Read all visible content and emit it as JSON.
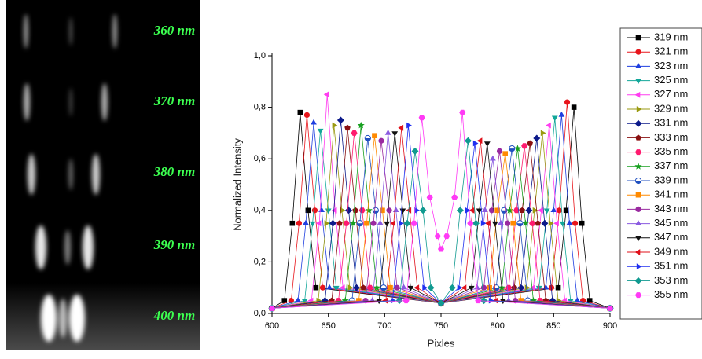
{
  "image_labels": [
    "360 nm",
    "370 nm",
    "380 nm",
    "390 nm",
    "400 nm"
  ],
  "chart_data": {
    "type": "line",
    "x_label": "Pixles",
    "y_label": "Normalized Intensity",
    "xlim": [
      600,
      900
    ],
    "xticks": [
      600,
      650,
      700,
      750,
      800,
      850,
      900
    ],
    "ylim": [
      0,
      1
    ],
    "yticks": [
      {
        "value": 0,
        "label": "0,0"
      },
      {
        "value": 0.2,
        "label": "0,2"
      },
      {
        "value": 0.4,
        "label": "0,4"
      },
      {
        "value": 0.6,
        "label": "0,6"
      },
      {
        "value": 0.8,
        "label": "0,8"
      },
      {
        "value": 1,
        "label": "1,0"
      }
    ],
    "legend": "right",
    "series": [
      {
        "name": "319 nm",
        "color": "#000000",
        "marker": "square",
        "x": [
          600,
          611,
          618,
          625,
          632,
          639,
          750,
          854,
          861,
          868,
          875,
          882,
          900
        ],
        "values": [
          0.02,
          0.05,
          0.35,
          0.78,
          0.4,
          0.1,
          0.04,
          0.1,
          0.4,
          0.8,
          0.35,
          0.05,
          0.02
        ]
      },
      {
        "name": "321 nm",
        "color": "#e8151b",
        "marker": "circle",
        "x": [
          600,
          617,
          624,
          631,
          638,
          645,
          750,
          848,
          855,
          862,
          869,
          876,
          900
        ],
        "values": [
          0.02,
          0.05,
          0.35,
          0.77,
          0.4,
          0.1,
          0.04,
          0.1,
          0.4,
          0.82,
          0.35,
          0.05,
          0.02
        ]
      },
      {
        "name": "323 nm",
        "color": "#1f3fe0",
        "marker": "triangle-up",
        "x": [
          600,
          623,
          630,
          637,
          644,
          651,
          750,
          843,
          850,
          857,
          864,
          871,
          900
        ],
        "values": [
          0.02,
          0.05,
          0.35,
          0.74,
          0.4,
          0.1,
          0.04,
          0.1,
          0.4,
          0.77,
          0.35,
          0.05,
          0.02
        ]
      },
      {
        "name": "325 nm",
        "color": "#12a79a",
        "marker": "triangle-down",
        "x": [
          600,
          629,
          636,
          643,
          650,
          657,
          750,
          837,
          844,
          851,
          858,
          865,
          900
        ],
        "values": [
          0.02,
          0.05,
          0.35,
          0.71,
          0.4,
          0.1,
          0.04,
          0.1,
          0.4,
          0.76,
          0.35,
          0.05,
          0.02
        ]
      },
      {
        "name": "327 nm",
        "color": "#ff3df0",
        "marker": "triangle-left",
        "x": [
          600,
          635,
          642,
          649,
          656,
          663,
          750,
          832,
          839,
          846,
          853,
          860,
          900
        ],
        "values": [
          0.02,
          0.05,
          0.35,
          0.85,
          0.4,
          0.1,
          0.04,
          0.1,
          0.4,
          0.73,
          0.35,
          0.05,
          0.02
        ]
      },
      {
        "name": "329 nm",
        "color": "#9a9a10",
        "marker": "triangle-right",
        "x": [
          600,
          641,
          648,
          655,
          662,
          669,
          750,
          826,
          833,
          840,
          847,
          854,
          900
        ],
        "values": [
          0.02,
          0.05,
          0.35,
          0.73,
          0.4,
          0.1,
          0.04,
          0.1,
          0.4,
          0.7,
          0.35,
          0.05,
          0.02
        ]
      },
      {
        "name": "331 nm",
        "color": "#0c1a8a",
        "marker": "diamond",
        "x": [
          600,
          647,
          654,
          661,
          668,
          675,
          750,
          821,
          828,
          835,
          842,
          849,
          900
        ],
        "values": [
          0.02,
          0.05,
          0.35,
          0.75,
          0.4,
          0.1,
          0.04,
          0.1,
          0.4,
          0.68,
          0.35,
          0.05,
          0.02
        ]
      },
      {
        "name": "333 nm",
        "color": "#8a1010",
        "marker": "pentagon",
        "x": [
          600,
          653,
          660,
          667,
          674,
          681,
          750,
          815,
          822,
          829,
          836,
          843,
          900
        ],
        "values": [
          0.02,
          0.05,
          0.35,
          0.72,
          0.4,
          0.1,
          0.04,
          0.1,
          0.4,
          0.66,
          0.35,
          0.05,
          0.02
        ]
      },
      {
        "name": "335 nm",
        "color": "#ff1a6e",
        "marker": "hexagon",
        "x": [
          600,
          659,
          666,
          673,
          680,
          687,
          750,
          810,
          817,
          824,
          831,
          838,
          900
        ],
        "values": [
          0.02,
          0.05,
          0.35,
          0.7,
          0.4,
          0.1,
          0.04,
          0.1,
          0.4,
          0.65,
          0.35,
          0.05,
          0.02
        ]
      },
      {
        "name": "337 nm",
        "color": "#18a020",
        "marker": "star",
        "x": [
          600,
          665,
          672,
          679,
          686,
          693,
          750,
          804,
          811,
          818,
          825,
          832,
          900
        ],
        "values": [
          0.02,
          0.05,
          0.35,
          0.73,
          0.4,
          0.1,
          0.04,
          0.1,
          0.4,
          0.64,
          0.35,
          0.05,
          0.02
        ]
      },
      {
        "name": "339 nm",
        "color": "#2050c0",
        "marker": "half-circle",
        "x": [
          600,
          671,
          678,
          685,
          692,
          699,
          750,
          799,
          806,
          813,
          820,
          827,
          900
        ],
        "values": [
          0.02,
          0.05,
          0.35,
          0.68,
          0.4,
          0.1,
          0.04,
          0.1,
          0.4,
          0.64,
          0.35,
          0.05,
          0.02
        ]
      },
      {
        "name": "341 nm",
        "color": "#ff8a00",
        "marker": "square",
        "x": [
          600,
          677,
          684,
          691,
          698,
          705,
          750,
          793,
          800,
          807,
          814,
          821,
          900
        ],
        "values": [
          0.02,
          0.05,
          0.35,
          0.69,
          0.4,
          0.1,
          0.04,
          0.1,
          0.4,
          0.62,
          0.35,
          0.05,
          0.02
        ]
      },
      {
        "name": "343 nm",
        "color": "#9a2aa0",
        "marker": "circle",
        "x": [
          600,
          683,
          690,
          697,
          704,
          711,
          750,
          788,
          795,
          802,
          809,
          816,
          900
        ],
        "values": [
          0.02,
          0.05,
          0.35,
          0.67,
          0.4,
          0.1,
          0.04,
          0.1,
          0.4,
          0.63,
          0.35,
          0.05,
          0.02
        ]
      },
      {
        "name": "345 nm",
        "color": "#8a5ae0",
        "marker": "triangle-up",
        "x": [
          600,
          689,
          696,
          703,
          710,
          717,
          750,
          782,
          789,
          796,
          803,
          810,
          900
        ],
        "values": [
          0.02,
          0.05,
          0.35,
          0.7,
          0.4,
          0.1,
          0.04,
          0.1,
          0.4,
          0.6,
          0.35,
          0.05,
          0.02
        ]
      },
      {
        "name": "347 nm",
        "color": "#111111",
        "marker": "triangle-down",
        "x": [
          600,
          695,
          702,
          709,
          716,
          723,
          750,
          777,
          784,
          791,
          798,
          805,
          900
        ],
        "values": [
          0.02,
          0.05,
          0.35,
          0.7,
          0.4,
          0.1,
          0.04,
          0.1,
          0.4,
          0.66,
          0.35,
          0.05,
          0.02
        ]
      },
      {
        "name": "349 nm",
        "color": "#e0101a",
        "marker": "triangle-left",
        "x": [
          600,
          701,
          708,
          715,
          722,
          729,
          750,
          771,
          778,
          785,
          792,
          799,
          900
        ],
        "values": [
          0.02,
          0.05,
          0.35,
          0.72,
          0.4,
          0.1,
          0.04,
          0.1,
          0.4,
          0.67,
          0.35,
          0.05,
          0.02
        ]
      },
      {
        "name": "351 nm",
        "color": "#2030f0",
        "marker": "triangle-right",
        "x": [
          600,
          707,
          714,
          721,
          728,
          735,
          750,
          766,
          773,
          780,
          787,
          794,
          900
        ],
        "values": [
          0.02,
          0.05,
          0.35,
          0.73,
          0.4,
          0.1,
          0.04,
          0.1,
          0.4,
          0.66,
          0.35,
          0.05,
          0.02
        ]
      },
      {
        "name": "353 nm",
        "color": "#109a90",
        "marker": "diamond",
        "x": [
          600,
          713,
          720,
          727,
          734,
          741,
          750,
          760,
          767,
          774,
          781,
          788,
          900
        ],
        "values": [
          0.02,
          0.05,
          0.35,
          0.63,
          0.4,
          0.1,
          0.04,
          0.1,
          0.4,
          0.67,
          0.35,
          0.05,
          0.02
        ]
      },
      {
        "name": "355 nm",
        "color": "#ff3af5",
        "marker": "hexagon",
        "x": [
          600,
          719,
          726,
          733,
          740,
          747,
          750,
          755,
          762,
          769,
          776,
          783,
          900
        ],
        "values": [
          0.02,
          0.05,
          0.35,
          0.76,
          0.45,
          0.3,
          0.25,
          0.3,
          0.45,
          0.78,
          0.35,
          0.05,
          0.02
        ]
      }
    ]
  }
}
